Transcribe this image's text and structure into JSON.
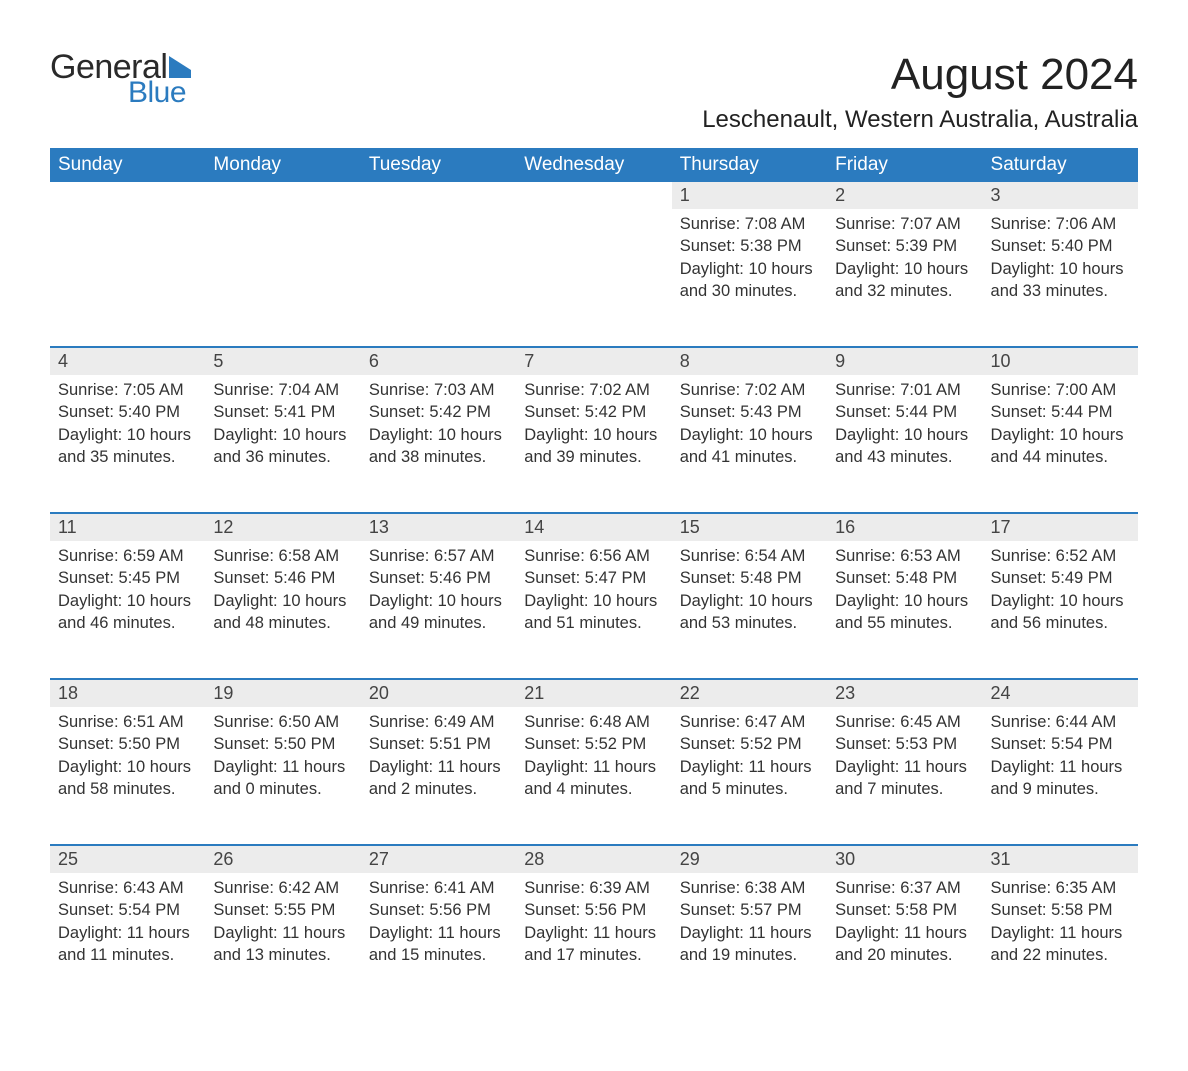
{
  "brand": {
    "word1": "General",
    "word2": "Blue",
    "mark_color": "#2b7bbf"
  },
  "title": "August 2024",
  "location": "Leschenault, Western Australia, Australia",
  "colors": {
    "header_bg": "#2b7bbf",
    "header_text": "#ffffff",
    "daynum_bg": "#ececec",
    "rule": "#2b7bbf",
    "text": "#333333",
    "background": "#ffffff"
  },
  "day_headers": [
    "Sunday",
    "Monday",
    "Tuesday",
    "Wednesday",
    "Thursday",
    "Friday",
    "Saturday"
  ],
  "weeks": [
    [
      null,
      null,
      null,
      null,
      {
        "n": "1",
        "sunrise": "7:08 AM",
        "sunset": "5:38 PM",
        "dh": "10",
        "dm": "30"
      },
      {
        "n": "2",
        "sunrise": "7:07 AM",
        "sunset": "5:39 PM",
        "dh": "10",
        "dm": "32"
      },
      {
        "n": "3",
        "sunrise": "7:06 AM",
        "sunset": "5:40 PM",
        "dh": "10",
        "dm": "33"
      }
    ],
    [
      {
        "n": "4",
        "sunrise": "7:05 AM",
        "sunset": "5:40 PM",
        "dh": "10",
        "dm": "35"
      },
      {
        "n": "5",
        "sunrise": "7:04 AM",
        "sunset": "5:41 PM",
        "dh": "10",
        "dm": "36"
      },
      {
        "n": "6",
        "sunrise": "7:03 AM",
        "sunset": "5:42 PM",
        "dh": "10",
        "dm": "38"
      },
      {
        "n": "7",
        "sunrise": "7:02 AM",
        "sunset": "5:42 PM",
        "dh": "10",
        "dm": "39"
      },
      {
        "n": "8",
        "sunrise": "7:02 AM",
        "sunset": "5:43 PM",
        "dh": "10",
        "dm": "41"
      },
      {
        "n": "9",
        "sunrise": "7:01 AM",
        "sunset": "5:44 PM",
        "dh": "10",
        "dm": "43"
      },
      {
        "n": "10",
        "sunrise": "7:00 AM",
        "sunset": "5:44 PM",
        "dh": "10",
        "dm": "44"
      }
    ],
    [
      {
        "n": "11",
        "sunrise": "6:59 AM",
        "sunset": "5:45 PM",
        "dh": "10",
        "dm": "46"
      },
      {
        "n": "12",
        "sunrise": "6:58 AM",
        "sunset": "5:46 PM",
        "dh": "10",
        "dm": "48"
      },
      {
        "n": "13",
        "sunrise": "6:57 AM",
        "sunset": "5:46 PM",
        "dh": "10",
        "dm": "49"
      },
      {
        "n": "14",
        "sunrise": "6:56 AM",
        "sunset": "5:47 PM",
        "dh": "10",
        "dm": "51"
      },
      {
        "n": "15",
        "sunrise": "6:54 AM",
        "sunset": "5:48 PM",
        "dh": "10",
        "dm": "53"
      },
      {
        "n": "16",
        "sunrise": "6:53 AM",
        "sunset": "5:48 PM",
        "dh": "10",
        "dm": "55"
      },
      {
        "n": "17",
        "sunrise": "6:52 AM",
        "sunset": "5:49 PM",
        "dh": "10",
        "dm": "56"
      }
    ],
    [
      {
        "n": "18",
        "sunrise": "6:51 AM",
        "sunset": "5:50 PM",
        "dh": "10",
        "dm": "58"
      },
      {
        "n": "19",
        "sunrise": "6:50 AM",
        "sunset": "5:50 PM",
        "dh": "11",
        "dm": "0"
      },
      {
        "n": "20",
        "sunrise": "6:49 AM",
        "sunset": "5:51 PM",
        "dh": "11",
        "dm": "2"
      },
      {
        "n": "21",
        "sunrise": "6:48 AM",
        "sunset": "5:52 PM",
        "dh": "11",
        "dm": "4"
      },
      {
        "n": "22",
        "sunrise": "6:47 AM",
        "sunset": "5:52 PM",
        "dh": "11",
        "dm": "5"
      },
      {
        "n": "23",
        "sunrise": "6:45 AM",
        "sunset": "5:53 PM",
        "dh": "11",
        "dm": "7"
      },
      {
        "n": "24",
        "sunrise": "6:44 AM",
        "sunset": "5:54 PM",
        "dh": "11",
        "dm": "9"
      }
    ],
    [
      {
        "n": "25",
        "sunrise": "6:43 AM",
        "sunset": "5:54 PM",
        "dh": "11",
        "dm": "11"
      },
      {
        "n": "26",
        "sunrise": "6:42 AM",
        "sunset": "5:55 PM",
        "dh": "11",
        "dm": "13"
      },
      {
        "n": "27",
        "sunrise": "6:41 AM",
        "sunset": "5:56 PM",
        "dh": "11",
        "dm": "15"
      },
      {
        "n": "28",
        "sunrise": "6:39 AM",
        "sunset": "5:56 PM",
        "dh": "11",
        "dm": "17"
      },
      {
        "n": "29",
        "sunrise": "6:38 AM",
        "sunset": "5:57 PM",
        "dh": "11",
        "dm": "19"
      },
      {
        "n": "30",
        "sunrise": "6:37 AM",
        "sunset": "5:58 PM",
        "dh": "11",
        "dm": "20"
      },
      {
        "n": "31",
        "sunrise": "6:35 AM",
        "sunset": "5:58 PM",
        "dh": "11",
        "dm": "22"
      }
    ]
  ]
}
